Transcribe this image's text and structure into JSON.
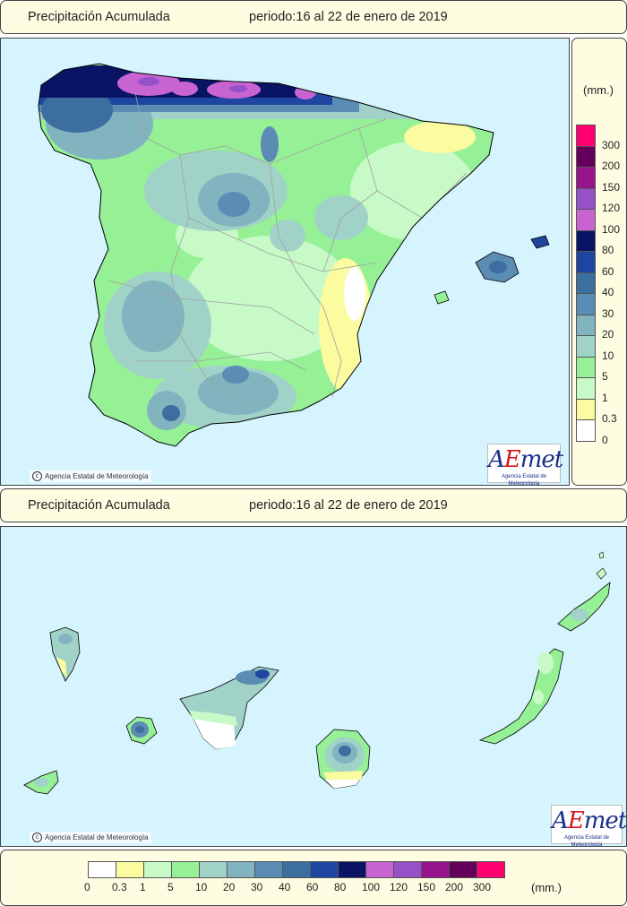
{
  "header_peninsula": {
    "title": "Precipitación Acumulada",
    "period": "periodo:16 al 22 de enero de 2019"
  },
  "header_canarias": {
    "title": "Precipitación Acumulada",
    "period": "periodo:16 al 22 de enero de 2019"
  },
  "copyright_peninsula": "Agencia Estatal de Meteorología",
  "copyright_canarias": "Agencia Estatal de Meteorología",
  "logo": {
    "name": "AEmet",
    "subtitle": "Agencia Estatal de Meteorología"
  },
  "legend": {
    "unit": "(mm.)",
    "thresholds": [
      "0",
      "0.3",
      "1",
      "5",
      "10",
      "20",
      "30",
      "40",
      "60",
      "80",
      "100",
      "120",
      "150",
      "200",
      "300"
    ],
    "colors": [
      "#ffffff",
      "#fbfba0",
      "#c8fac8",
      "#96f096",
      "#a0d2c8",
      "#82b4c0",
      "#5a8cb4",
      "#3c6ea0",
      "#1e46a0",
      "#0a1464",
      "#c864d2",
      "#9650c8",
      "#96148c",
      "#64005a",
      "#ff006e"
    ]
  },
  "colors": {
    "sea": "#d6f4fd",
    "panel_bg": "#fffde1",
    "land_border": "#000000",
    "region_border": "#a0a0a0"
  }
}
